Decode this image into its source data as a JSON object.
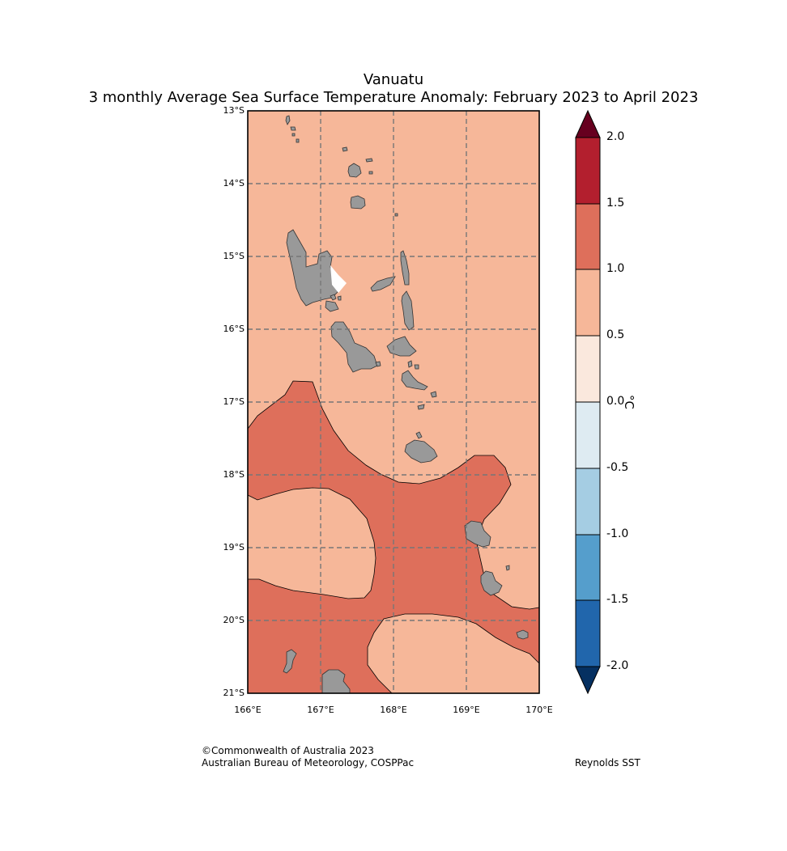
{
  "title": {
    "line1": "Vanuatu",
    "line2": "3 monthly Average Sea Surface Temperature Anomaly: February 2023 to April 2023"
  },
  "map": {
    "region": "Vanuatu",
    "lat_labels": [
      "13°S",
      "14°S",
      "15°S",
      "16°S",
      "17°S",
      "18°S",
      "19°S",
      "20°S",
      "21°S"
    ],
    "lon_labels": [
      "166°E",
      "167°E",
      "168°E",
      "169°E",
      "170°E"
    ],
    "colors": {
      "land": "#999999",
      "anomaly_0_5_to_1_0": "#f6b799",
      "anomaly_1_0_to_1_5": "#de6f5b",
      "grid": "#777777"
    }
  },
  "colorbar": {
    "unit": "°C",
    "tick_labels": [
      "2.0",
      "1.5",
      "1.0",
      "0.5",
      "0.0",
      "-0.5",
      "-1.0",
      "-1.5",
      "-2.0"
    ],
    "segments": [
      {
        "range": "1.5 to 2.0",
        "color": "#b31f2e"
      },
      {
        "range": "1.0 to 1.5",
        "color": "#de6f5b"
      },
      {
        "range": "0.5 to 1.0",
        "color": "#f6b799"
      },
      {
        "range": "0.0 to 0.5",
        "color": "#fae8dd"
      },
      {
        "range": "-0.5 to 0.0",
        "color": "#deebf2"
      },
      {
        "range": "-1.0 to -0.5",
        "color": "#a5cde3"
      },
      {
        "range": "-1.5 to -1.0",
        "color": "#559ecc"
      },
      {
        "range": "-2.0 to -1.5",
        "color": "#2166ac"
      }
    ],
    "over_color": "#67001f",
    "under_color": "#053061"
  },
  "footer": {
    "copyright": "©Commonwealth of Australia 2023",
    "agency": "Australian Bureau of Meteorology, COSPPac",
    "dataset": "Reynolds SST"
  }
}
